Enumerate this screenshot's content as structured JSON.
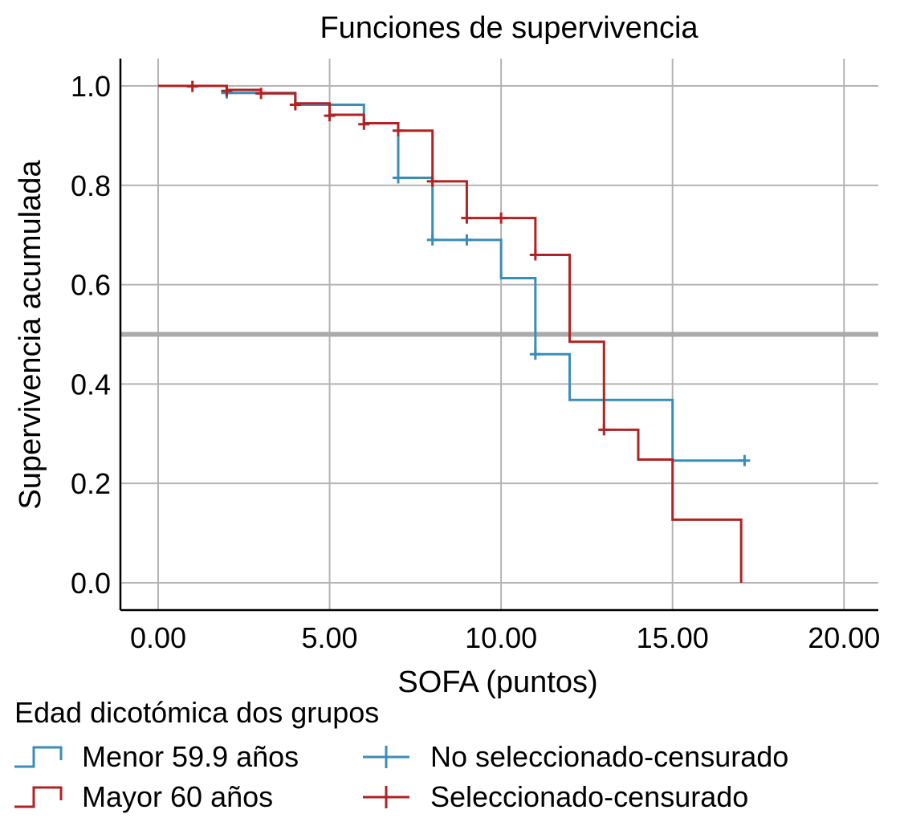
{
  "chart_data": {
    "type": "line",
    "subtype": "kaplan-meier-step",
    "title": "Funciones de supervivencia",
    "xlabel": "SOFA (puntos)",
    "ylabel": "Supervivencia acumulada",
    "xlim": [
      -1.1,
      21
    ],
    "ylim": [
      -0.055,
      1.055
    ],
    "xticks": [
      0,
      5,
      10,
      15,
      20
    ],
    "xtick_labels": [
      "0.00",
      "5.00",
      "10.00",
      "15.00",
      "20.00"
    ],
    "yticks": [
      0,
      0.2,
      0.4,
      0.6,
      0.8,
      1.0
    ],
    "ytick_labels": [
      "0.0",
      "0.2",
      "0.4",
      "0.6",
      "0.8",
      "1.0"
    ],
    "grid": true,
    "reference_line": {
      "y": 0.5,
      "color": "#aaaaaa"
    },
    "legend": {
      "title": "Edad dicotómica dos grupos",
      "position": "bottom",
      "entries": [
        {
          "label": "Menor 59.9 años",
          "kind": "step",
          "series": 0
        },
        {
          "label": "Mayor 60 años",
          "kind": "step",
          "series": 1
        },
        {
          "label": "No seleccionado-censurado",
          "kind": "censor",
          "series": 0
        },
        {
          "label": "Seleccionado-censurado",
          "kind": "censor",
          "series": 1
        }
      ]
    },
    "series": [
      {
        "name": "Menor 59.9 años",
        "color": "#3a8db5",
        "steps": [
          [
            0,
            1.0
          ],
          [
            2,
            0.986
          ],
          [
            4,
            0.962
          ],
          [
            6,
            0.925
          ],
          [
            7,
            0.815
          ],
          [
            8,
            0.69
          ],
          [
            10,
            0.613
          ],
          [
            11,
            0.46
          ],
          [
            12,
            0.368
          ],
          [
            15,
            0.246
          ],
          [
            17.1,
            0.246
          ]
        ],
        "censored": [
          [
            2,
            0.986
          ],
          [
            7,
            0.815
          ],
          [
            8,
            0.69
          ],
          [
            9,
            0.69
          ],
          [
            11,
            0.46
          ],
          [
            17.1,
            0.246
          ]
        ]
      },
      {
        "name": "Mayor 60 años",
        "color": "#b22222",
        "steps": [
          [
            0,
            1.0
          ],
          [
            2,
            0.992
          ],
          [
            3,
            0.985
          ],
          [
            4,
            0.965
          ],
          [
            5,
            0.942
          ],
          [
            6,
            0.925
          ],
          [
            7,
            0.91
          ],
          [
            8,
            0.808
          ],
          [
            9,
            0.734
          ],
          [
            11,
            0.66
          ],
          [
            12,
            0.485
          ],
          [
            13,
            0.308
          ],
          [
            14,
            0.248
          ],
          [
            15,
            0.127
          ],
          [
            17,
            0.0
          ]
        ],
        "censored": [
          [
            1,
            0.999
          ],
          [
            2,
            0.99
          ],
          [
            3,
            0.985
          ],
          [
            4,
            0.962
          ],
          [
            5,
            0.94
          ],
          [
            6,
            0.923
          ],
          [
            7,
            0.91
          ],
          [
            8,
            0.808
          ],
          [
            9,
            0.734
          ],
          [
            10,
            0.734
          ],
          [
            11,
            0.66
          ],
          [
            13,
            0.308
          ]
        ]
      }
    ]
  }
}
